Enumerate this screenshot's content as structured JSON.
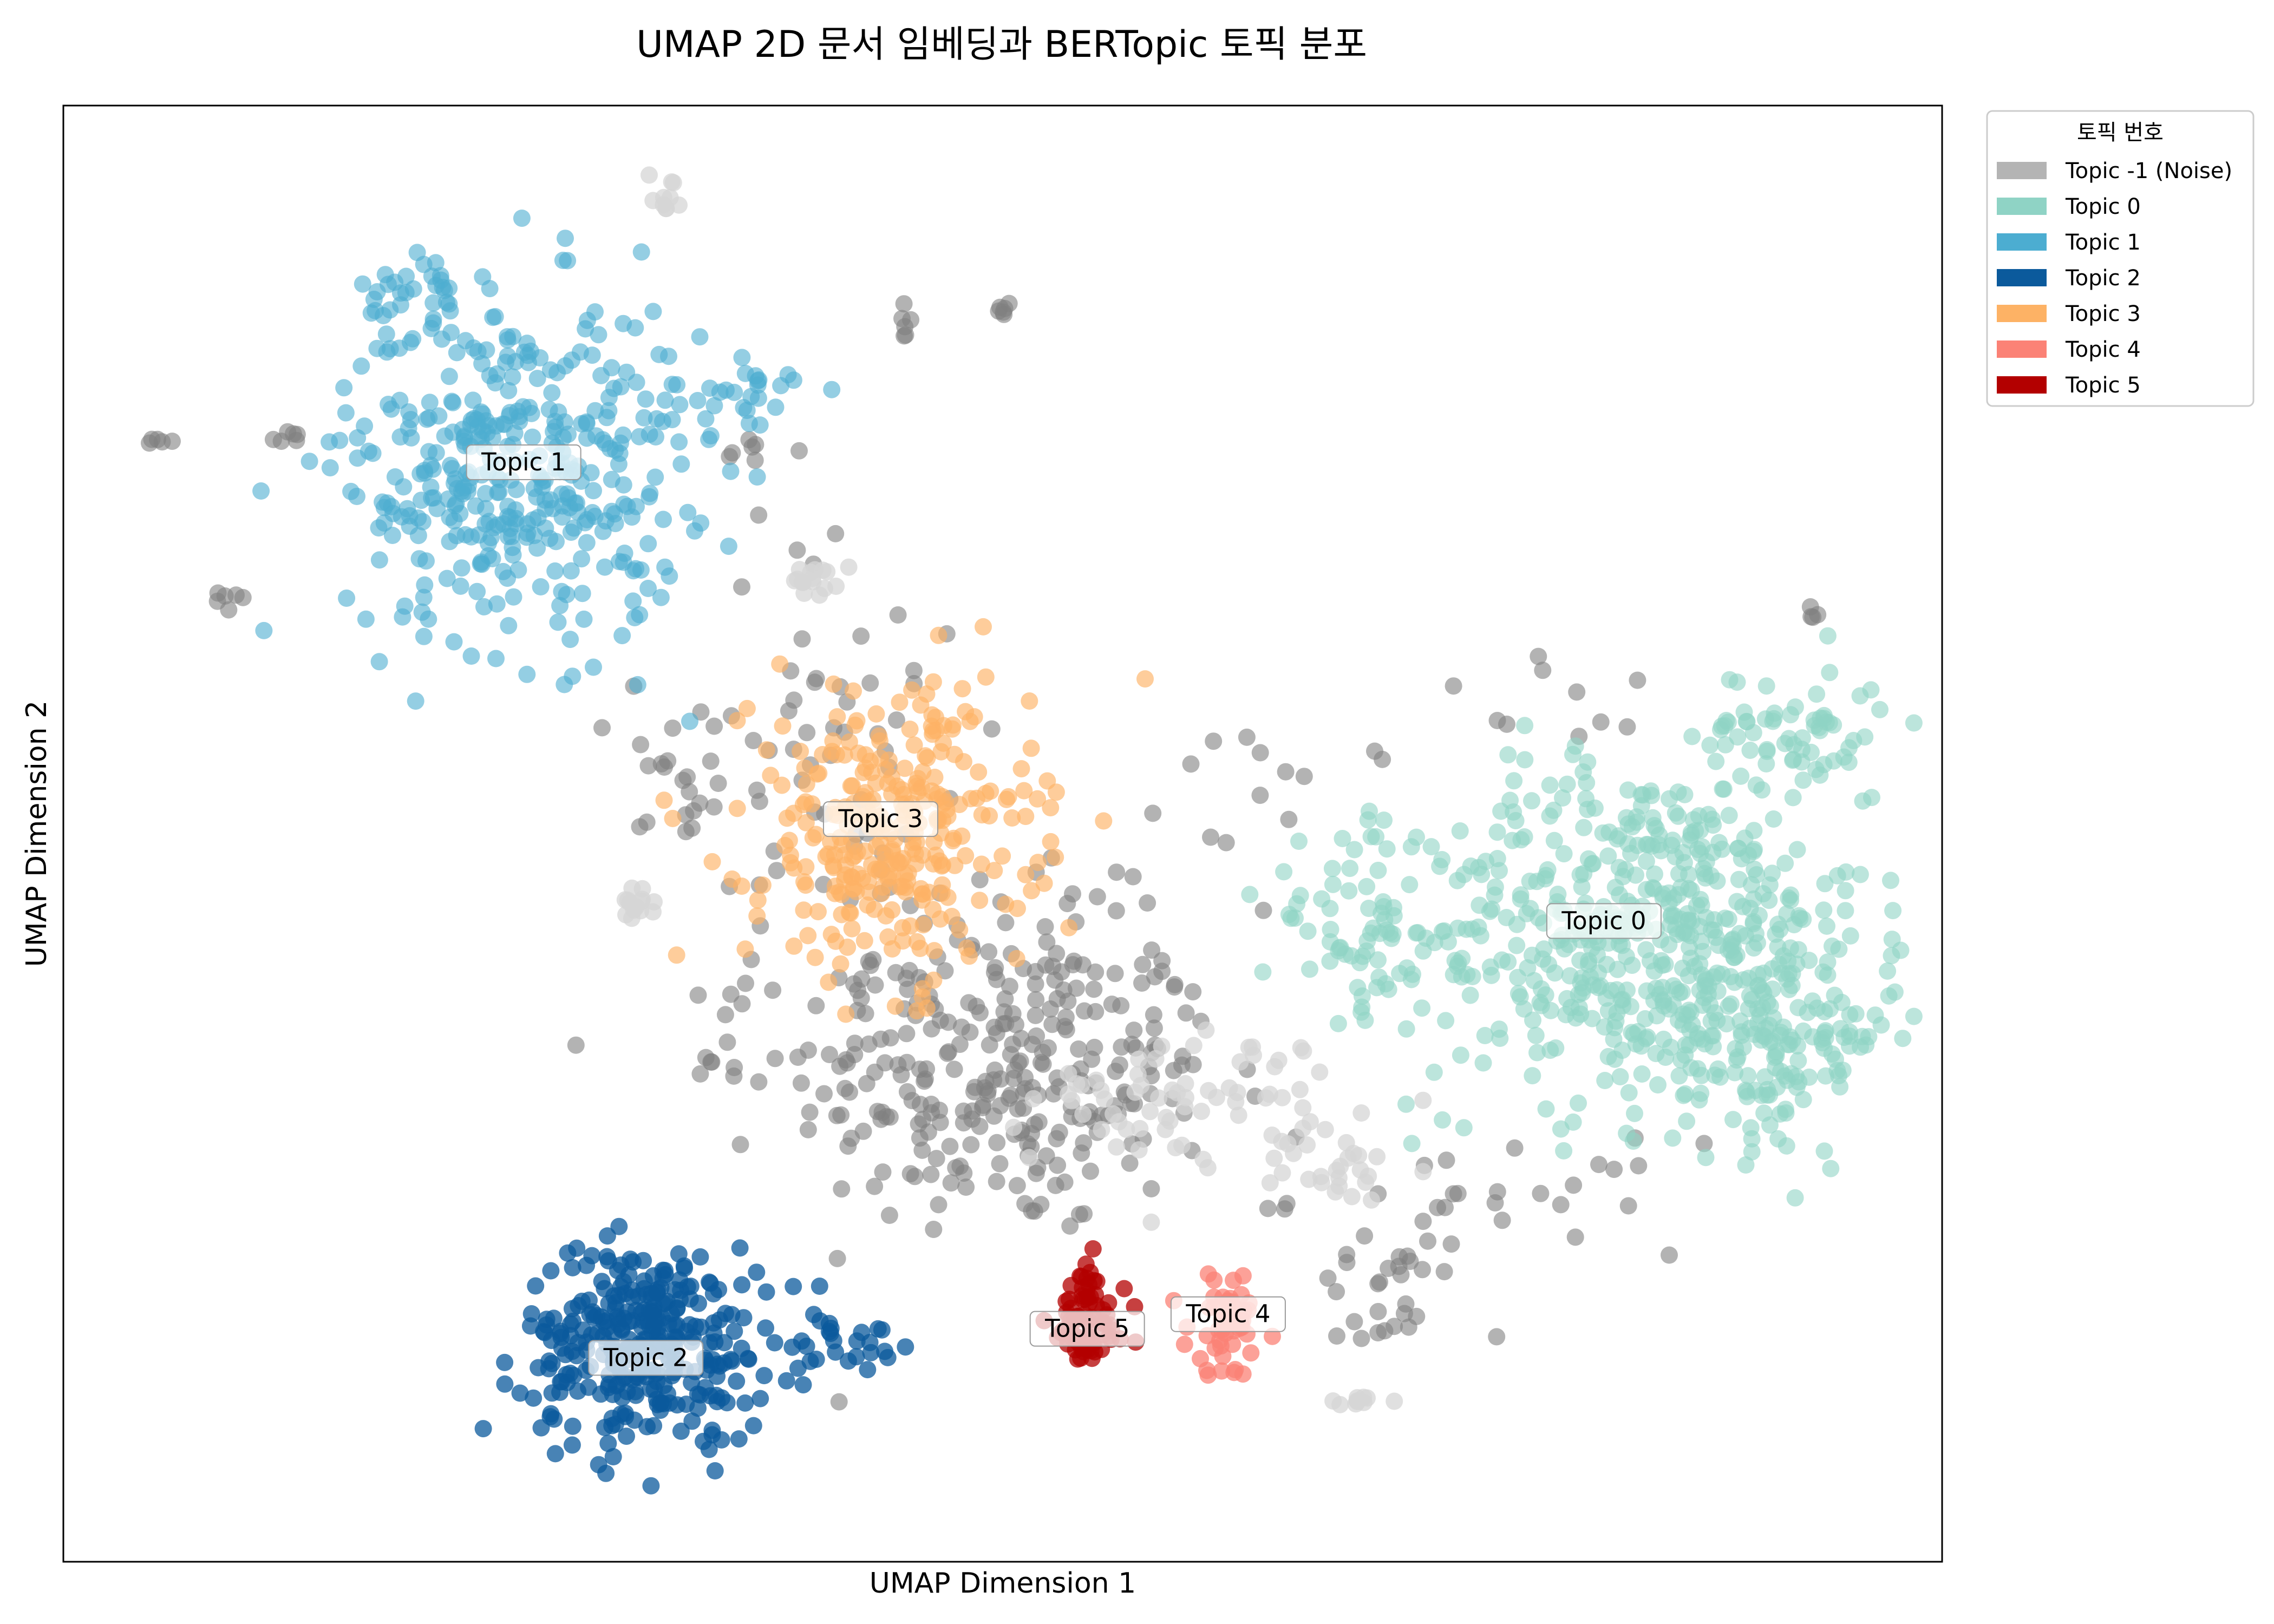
{
  "chart_data": {
    "type": "scatter",
    "title": "UMAP 2D 문서 임베딩과 BERTopic 토픽 분포",
    "xlabel": "UMAP Dimension 1",
    "ylabel": "UMAP Dimension 2",
    "xlim": [
      0,
      100
    ],
    "ylim": [
      0,
      100
    ],
    "grid": false,
    "ticks_visible": false,
    "legend": {
      "title": "토픽 번호",
      "placement": "outside-top-right",
      "entries": [
        {
          "id": -1,
          "label": "Topic -1 (Noise)",
          "color": "#b4b4b4"
        },
        {
          "id": 0,
          "label": "Topic 0",
          "color": "#8fd3c5"
        },
        {
          "id": 1,
          "label": "Topic 1",
          "color": "#4cadd1"
        },
        {
          "id": 2,
          "label": "Topic 2",
          "color": "#0b5a9c"
        },
        {
          "id": 3,
          "label": "Topic 3",
          "color": "#fdb265"
        },
        {
          "id": 4,
          "label": "Topic 4",
          "color": "#fb8276"
        },
        {
          "id": 5,
          "label": "Topic 5",
          "color": "#b30000"
        }
      ]
    },
    "series": [
      {
        "topic": -1,
        "color": "#808080",
        "alpha": 0.6,
        "label": "",
        "clusters": [
          {
            "cx": 50,
            "cy": 33,
            "sx": 7.5,
            "sy": 7,
            "n": 260
          },
          {
            "cx": 40,
            "cy": 57,
            "sx": 6,
            "sy": 9,
            "n": 60
          },
          {
            "cx": 48,
            "cy": 41,
            "sx": 9,
            "sy": 6,
            "n": 70
          },
          {
            "cx": 70,
            "cy": 18,
            "sx": 3,
            "sy": 3,
            "n": 25
          },
          {
            "cx": 76,
            "cy": 25,
            "sx": 7,
            "sy": 2.5,
            "n": 30
          },
          {
            "cx": 65,
            "cy": 53,
            "sx": 4,
            "sy": 3,
            "n": 12
          },
          {
            "cx": 80,
            "cy": 59,
            "sx": 5,
            "sy": 2,
            "n": 10
          },
          {
            "cx": 45,
            "cy": 85,
            "sx": 0.5,
            "sy": 1,
            "n": 6
          },
          {
            "cx": 50,
            "cy": 86,
            "sx": 0.6,
            "sy": 0.5,
            "n": 6
          },
          {
            "cx": 5,
            "cy": 77,
            "sx": 0.6,
            "sy": 0.3,
            "n": 5
          },
          {
            "cx": 12,
            "cy": 77,
            "sx": 1,
            "sy": 0.4,
            "n": 6
          },
          {
            "cx": 9,
            "cy": 66,
            "sx": 1,
            "sy": 0.5,
            "n": 6
          },
          {
            "cx": 35,
            "cy": 34,
            "sx": 1,
            "sy": 1,
            "n": 6
          },
          {
            "cx": 93,
            "cy": 65,
            "sx": 0.6,
            "sy": 0.6,
            "n": 4
          },
          {
            "cx": 37,
            "cy": 76,
            "sx": 1.5,
            "sy": 2,
            "n": 8
          },
          {
            "cx": 33,
            "cy": 52,
            "sx": 1.5,
            "sy": 2,
            "n": 10
          }
        ]
      },
      {
        "topic": -1,
        "color": "#d6d6d6",
        "alpha": 0.75,
        "label": "",
        "clusters": [
          {
            "cx": 32,
            "cy": 94,
            "sx": 0.6,
            "sy": 1,
            "n": 10
          },
          {
            "cx": 40,
            "cy": 67.5,
            "sx": 0.8,
            "sy": 0.8,
            "n": 16
          },
          {
            "cx": 30.5,
            "cy": 45,
            "sx": 0.6,
            "sy": 0.8,
            "n": 14
          },
          {
            "cx": 60,
            "cy": 32,
            "sx": 5.5,
            "sy": 3,
            "n": 70
          },
          {
            "cx": 68,
            "cy": 27,
            "sx": 2,
            "sy": 1.5,
            "n": 25
          },
          {
            "cx": 69,
            "cy": 11,
            "sx": 1,
            "sy": 0.3,
            "n": 10
          }
        ]
      },
      {
        "topic": 0,
        "color": "#8fd3c5",
        "alpha": 0.6,
        "label": "Topic 0",
        "label_pos": [
          82,
          44
        ],
        "clusters": [
          {
            "cx": 84,
            "cy": 43,
            "sx": 8,
            "sy": 8,
            "n": 560
          },
          {
            "cx": 92,
            "cy": 36,
            "sx": 3.5,
            "sy": 4.5,
            "n": 120
          },
          {
            "cx": 69,
            "cy": 44,
            "sx": 3.5,
            "sy": 4,
            "n": 60
          },
          {
            "cx": 92,
            "cy": 57,
            "sx": 3.5,
            "sy": 3,
            "n": 60
          }
        ]
      },
      {
        "topic": 1,
        "color": "#4cadd1",
        "alpha": 0.6,
        "label": "Topic 1",
        "label_pos": [
          24.5,
          75.5
        ],
        "clusters": [
          {
            "cx": 24,
            "cy": 75,
            "sx": 6,
            "sy": 8,
            "n": 400
          },
          {
            "cx": 19,
            "cy": 87,
            "sx": 2,
            "sy": 2,
            "n": 30
          },
          {
            "cx": 36,
            "cy": 80,
            "sx": 2.5,
            "sy": 2,
            "n": 30
          }
        ]
      },
      {
        "topic": 2,
        "color": "#0b5a9c",
        "alpha": 0.75,
        "label": "Topic 2",
        "label_pos": [
          31,
          14
        ],
        "clusters": [
          {
            "cx": 31,
            "cy": 15,
            "sx": 4.3,
            "sy": 4.5,
            "n": 330
          },
          {
            "cx": 42,
            "cy": 15,
            "sx": 2.5,
            "sy": 1.5,
            "n": 25
          }
        ]
      },
      {
        "topic": 3,
        "color": "#fdb265",
        "alpha": 0.65,
        "label": "Topic 3",
        "label_pos": [
          43.5,
          51
        ],
        "clusters": [
          {
            "cx": 44,
            "cy": 50,
            "sx": 5,
            "sy": 6.5,
            "n": 320
          }
        ]
      },
      {
        "topic": 4,
        "color": "#fb8276",
        "alpha": 0.75,
        "label": "Topic 4",
        "label_pos": [
          62,
          17
        ],
        "clusters": [
          {
            "cx": 62,
            "cy": 16.5,
            "sx": 1.4,
            "sy": 2.4,
            "n": 55
          }
        ]
      },
      {
        "topic": 5,
        "color": "#b30000",
        "alpha": 0.75,
        "label": "Topic 5",
        "label_pos": [
          54.5,
          16
        ],
        "clusters": [
          {
            "cx": 54.5,
            "cy": 16.5,
            "sx": 1.4,
            "sy": 2.6,
            "n": 75
          }
        ]
      }
    ]
  }
}
